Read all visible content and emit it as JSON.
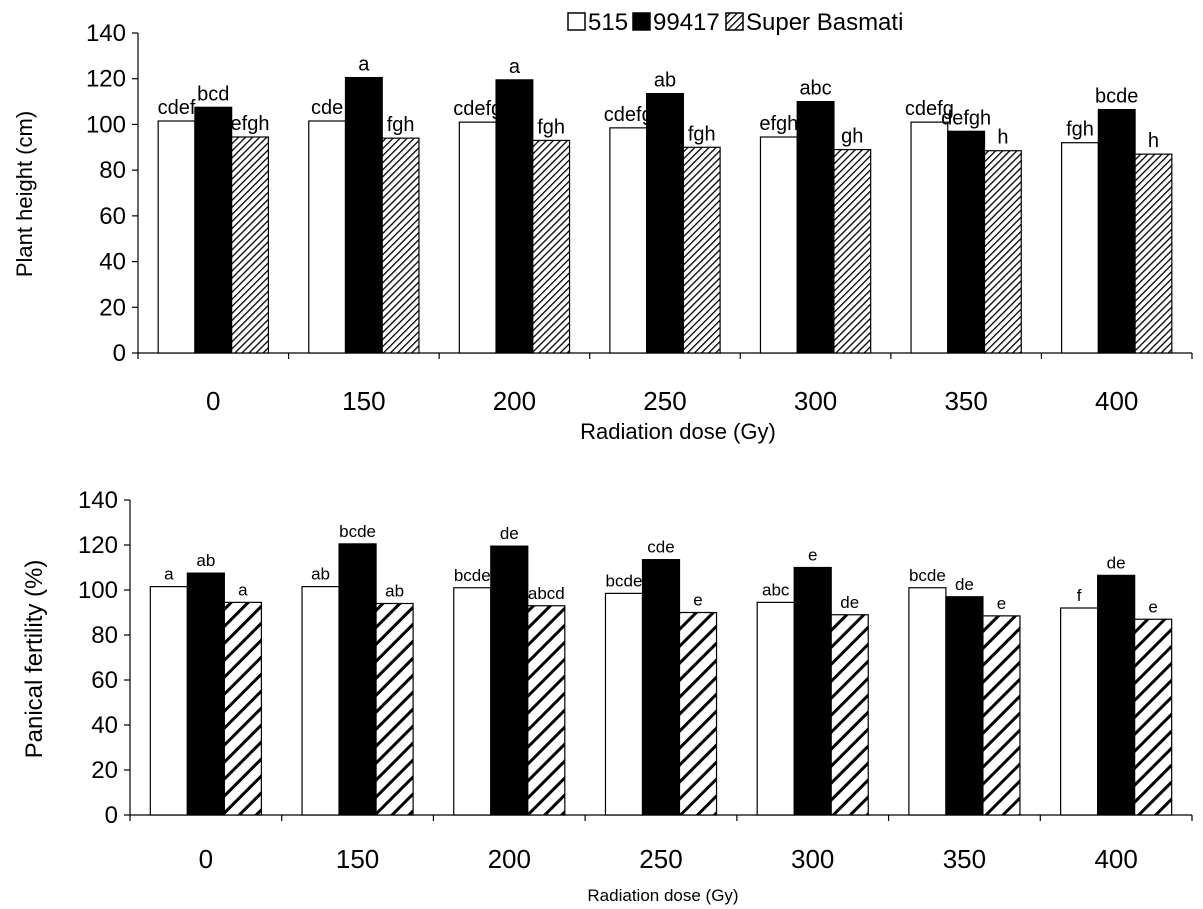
{
  "chart_data": [
    {
      "type": "bar",
      "ylabel": "Plant height (cm)",
      "xlabel": "Radiation dose (Gy)",
      "categories": [
        "0",
        "150",
        "200",
        "250",
        "300",
        "350",
        "400"
      ],
      "ylim": [
        0,
        140
      ],
      "yticks": [
        0,
        20,
        40,
        60,
        80,
        100,
        120,
        140
      ],
      "legend_position": "top-right",
      "series": [
        {
          "name": "515",
          "fill": "white",
          "values": [
            101.5,
            101.5,
            101,
            98.5,
            94.5,
            101,
            92
          ],
          "labels": [
            "cdef",
            "cde",
            "cdefg",
            "cdefg",
            "efgh",
            "cdefg",
            "fgh"
          ]
        },
        {
          "name": "99417",
          "fill": "black",
          "values": [
            107.5,
            120.5,
            119.5,
            113.5,
            110,
            97,
            106.5
          ],
          "labels": [
            "bcd",
            "a",
            "a",
            "ab",
            "abc",
            "defgh",
            "bcde"
          ]
        },
        {
          "name": "Super Basmati",
          "fill": "fine-hatch",
          "values": [
            94.5,
            94,
            93,
            90,
            89,
            88.5,
            87
          ],
          "labels": [
            "efgh",
            "fgh",
            "fgh",
            "fgh",
            "gh",
            "h",
            "h"
          ]
        }
      ]
    },
    {
      "type": "bar",
      "ylabel": "Panical fertility (%)",
      "xlabel": "Radiation dose (Gy)",
      "categories": [
        "0",
        "150",
        "200",
        "250",
        "300",
        "350",
        "400"
      ],
      "ylim": [
        0,
        140
      ],
      "yticks": [
        0,
        20,
        40,
        60,
        80,
        100,
        120,
        140
      ],
      "series": [
        {
          "name": "515",
          "fill": "white",
          "values": [
            101.5,
            101.5,
            101,
            98.5,
            94.5,
            101,
            92
          ],
          "labels": [
            "a",
            "ab",
            "bcde",
            "bcde",
            "abc",
            "bcde",
            "f"
          ]
        },
        {
          "name": "99417",
          "fill": "black",
          "values": [
            107.5,
            120.5,
            119.5,
            113.5,
            110,
            97,
            106.5
          ],
          "labels": [
            "ab",
            "bcde",
            "de",
            "cde",
            "e",
            "de",
            "de"
          ]
        },
        {
          "name": "Super Basmati",
          "fill": "wide-hatch",
          "values": [
            94.5,
            94,
            93,
            90,
            89,
            88.5,
            87
          ],
          "labels": [
            "a",
            "ab",
            "abcd",
            "e",
            "de",
            "e",
            "e"
          ]
        }
      ]
    }
  ]
}
